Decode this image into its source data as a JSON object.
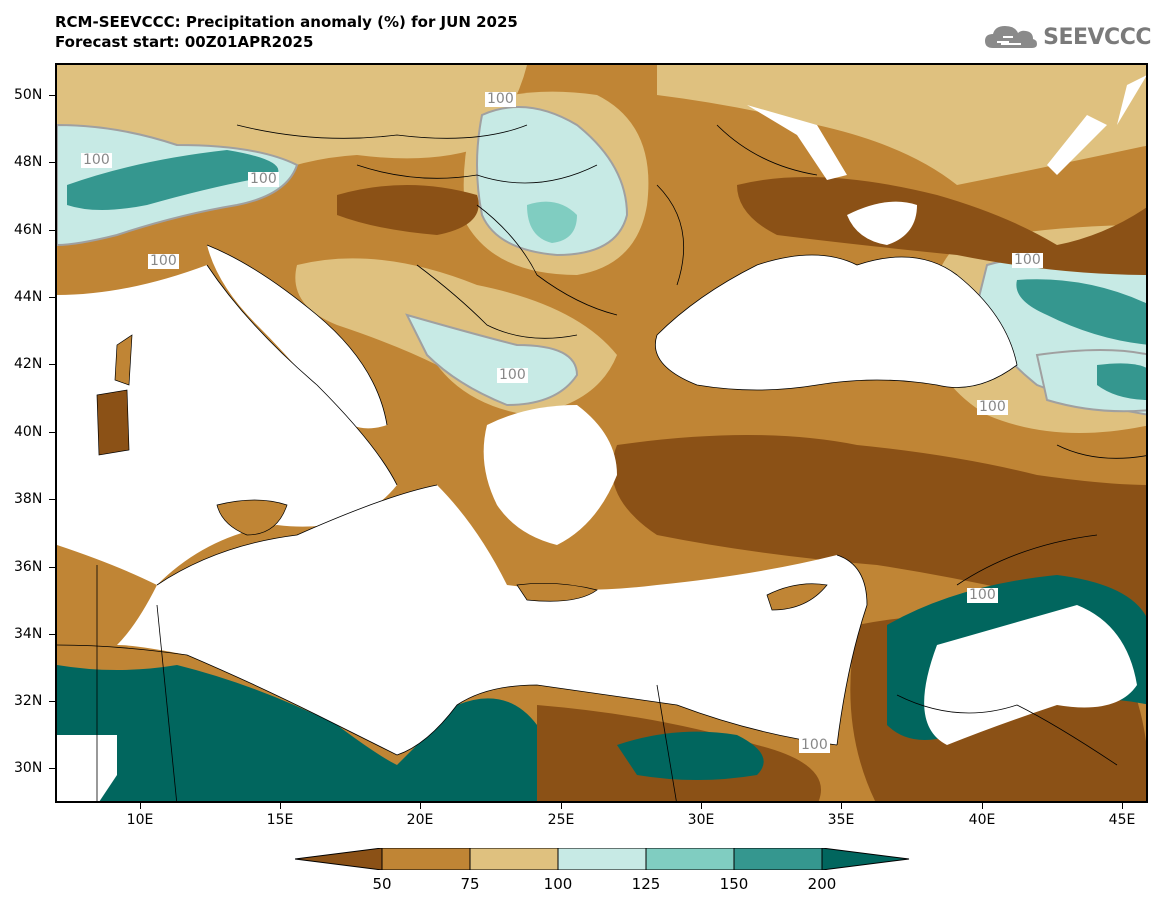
{
  "header": {
    "title": "RCM-SEEVCCC: Precipitation anomaly (%) for JUN 2025",
    "subtitle": "Forecast start: 00Z01APR2025"
  },
  "logo": {
    "text": "SEEVCCC",
    "icon": "cloud-icon"
  },
  "map": {
    "lon_range": [
      7,
      46
    ],
    "lat_range": [
      29,
      51
    ],
    "lat_labels": [
      "50N",
      "48N",
      "46N",
      "44N",
      "42N",
      "40N",
      "38N",
      "36N",
      "34N",
      "32N",
      "30N"
    ],
    "lon_labels": [
      "10E",
      "15E",
      "20E",
      "25E",
      "30E",
      "35E",
      "40E",
      "45E"
    ],
    "contour_labels": [
      "100",
      "100",
      "100",
      "100",
      "100",
      "100",
      "100",
      "100",
      "100"
    ]
  },
  "legend": {
    "levels": [
      "50",
      "75",
      "100",
      "125",
      "150",
      "200"
    ],
    "colors": [
      "#8b5116",
      "#c08535",
      "#dfc17f",
      "#c7eae5",
      "#80cdc1",
      "#35978f",
      "#01665e"
    ]
  }
}
